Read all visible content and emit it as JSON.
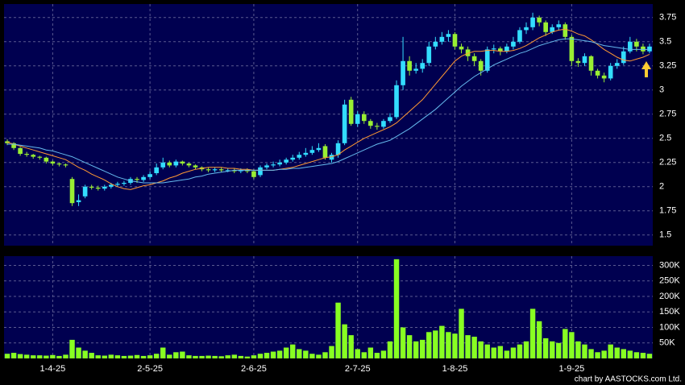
{
  "credit": "chart by AASTOCKS.com Ltd.",
  "chart_data": [
    {
      "type": "candlestick",
      "open": [
        2.47,
        2.45,
        2.4,
        2.34,
        2.33,
        2.31,
        2.3,
        2.26,
        2.24,
        2.23,
        2.08,
        1.84,
        1.9,
        2.0,
        1.99,
        1.98,
        2.0,
        2.02,
        2.03,
        2.04,
        2.08,
        2.07,
        2.1,
        2.14,
        2.2,
        2.25,
        2.22,
        2.26,
        2.24,
        2.22,
        2.2,
        2.18,
        2.17,
        2.18,
        2.17,
        2.17,
        2.16,
        2.17,
        2.16,
        2.12,
        2.2,
        2.22,
        2.23,
        2.25,
        2.28,
        2.3,
        2.33,
        2.35,
        2.38,
        2.42,
        2.28,
        2.33,
        2.45,
        2.9,
        2.65,
        2.75,
        2.68,
        2.63,
        2.62,
        2.68,
        2.72,
        3.05,
        3.3,
        3.2,
        3.22,
        3.28,
        3.45,
        3.5,
        3.55,
        3.58,
        3.45,
        3.42,
        3.35,
        3.3,
        3.2,
        3.42,
        3.43,
        3.4,
        3.45,
        3.5,
        3.62,
        3.65,
        3.75,
        3.7,
        3.6,
        3.65,
        3.68,
        3.55,
        3.3,
        3.28,
        3.35,
        3.2,
        3.15,
        3.12,
        3.25,
        3.28,
        3.4,
        3.5,
        3.45,
        3.4
      ],
      "high": [
        2.49,
        2.46,
        2.41,
        2.36,
        2.34,
        2.32,
        2.31,
        2.27,
        2.25,
        2.24,
        2.1,
        1.92,
        2.02,
        2.02,
        2.01,
        2.02,
        2.04,
        2.05,
        2.06,
        2.1,
        2.1,
        2.12,
        2.16,
        2.24,
        2.3,
        2.27,
        2.28,
        2.27,
        2.25,
        2.23,
        2.21,
        2.2,
        2.2,
        2.2,
        2.19,
        2.19,
        2.19,
        2.19,
        2.18,
        2.22,
        2.24,
        2.26,
        2.28,
        2.3,
        2.33,
        2.36,
        2.4,
        2.42,
        2.45,
        2.44,
        2.35,
        2.48,
        2.9,
        2.93,
        2.78,
        2.78,
        2.7,
        2.66,
        2.7,
        2.76,
        3.1,
        3.55,
        3.35,
        3.28,
        3.32,
        3.5,
        3.55,
        3.6,
        3.62,
        3.6,
        3.48,
        3.45,
        3.38,
        3.32,
        3.45,
        3.47,
        3.45,
        3.48,
        3.55,
        3.65,
        3.7,
        3.8,
        3.77,
        3.72,
        3.68,
        3.72,
        3.7,
        3.57,
        3.33,
        3.38,
        3.36,
        3.22,
        3.18,
        3.28,
        3.32,
        3.45,
        3.55,
        3.53,
        3.48,
        3.48
      ],
      "low": [
        2.43,
        2.38,
        2.32,
        2.31,
        2.29,
        2.28,
        2.24,
        2.22,
        2.21,
        2.2,
        1.8,
        1.8,
        1.88,
        1.97,
        1.96,
        1.96,
        1.98,
        2.0,
        2.01,
        2.02,
        2.04,
        2.05,
        2.08,
        2.12,
        2.18,
        2.2,
        2.2,
        2.22,
        2.2,
        2.18,
        2.16,
        2.15,
        2.15,
        2.15,
        2.15,
        2.14,
        2.14,
        2.14,
        2.08,
        2.1,
        2.18,
        2.2,
        2.21,
        2.23,
        2.26,
        2.28,
        2.31,
        2.33,
        2.36,
        2.28,
        2.25,
        2.3,
        2.43,
        2.63,
        2.62,
        2.65,
        2.6,
        2.59,
        2.6,
        2.66,
        2.7,
        3.0,
        3.15,
        3.17,
        3.18,
        3.25,
        3.42,
        3.47,
        3.5,
        3.42,
        3.38,
        3.3,
        3.25,
        3.15,
        3.18,
        3.38,
        3.36,
        3.38,
        3.42,
        3.48,
        3.58,
        3.62,
        3.66,
        3.56,
        3.58,
        3.62,
        3.52,
        3.25,
        3.24,
        3.25,
        3.15,
        3.12,
        3.08,
        3.1,
        3.22,
        3.26,
        3.38,
        3.4,
        3.37,
        3.38
      ],
      "close": [
        2.45,
        2.4,
        2.34,
        2.33,
        2.31,
        2.3,
        2.26,
        2.24,
        2.23,
        2.22,
        1.83,
        1.86,
        2.0,
        1.99,
        1.98,
        2.0,
        2.02,
        2.03,
        2.04,
        2.08,
        2.07,
        2.1,
        2.13,
        2.2,
        2.25,
        2.22,
        2.26,
        2.24,
        2.22,
        2.2,
        2.18,
        2.17,
        2.18,
        2.17,
        2.17,
        2.16,
        2.17,
        2.16,
        2.1,
        2.2,
        2.22,
        2.23,
        2.25,
        2.28,
        2.3,
        2.33,
        2.35,
        2.38,
        2.4,
        2.3,
        2.33,
        2.45,
        2.85,
        2.65,
        2.75,
        2.68,
        2.63,
        2.62,
        2.68,
        2.72,
        3.05,
        3.3,
        3.2,
        3.22,
        3.28,
        3.45,
        3.5,
        3.55,
        3.58,
        3.45,
        3.42,
        3.35,
        3.3,
        3.2,
        3.42,
        3.43,
        3.4,
        3.45,
        3.5,
        3.62,
        3.65,
        3.75,
        3.7,
        3.6,
        3.65,
        3.68,
        3.55,
        3.3,
        3.28,
        3.35,
        3.2,
        3.15,
        3.12,
        3.25,
        3.28,
        3.4,
        3.5,
        3.45,
        3.4,
        3.45
      ],
      "up_color": "#33ddff",
      "down_color": "#99ee33",
      "series": [
        {
          "color": "#ff9933",
          "values": [
            2.46,
            2.44,
            2.42,
            2.4,
            2.38,
            2.36,
            2.34,
            2.32,
            2.3,
            2.28,
            2.24,
            2.2,
            2.17,
            2.13,
            2.1,
            2.07,
            2.03,
            2.0,
            1.98,
            1.97,
            1.99,
            2.01,
            2.02,
            2.04,
            2.06,
            2.09,
            2.11,
            2.14,
            2.16,
            2.18,
            2.19,
            2.2,
            2.2,
            2.2,
            2.19,
            2.19,
            2.18,
            2.18,
            2.17,
            2.17,
            2.17,
            2.17,
            2.18,
            2.19,
            2.2,
            2.22,
            2.24,
            2.26,
            2.28,
            2.3,
            2.31,
            2.33,
            2.38,
            2.42,
            2.46,
            2.5,
            2.53,
            2.56,
            2.59,
            2.62,
            2.66,
            2.72,
            2.78,
            2.84,
            2.9,
            2.98,
            3.06,
            3.14,
            3.22,
            3.3,
            3.35,
            3.38,
            3.4,
            3.4,
            3.41,
            3.41,
            3.4,
            3.4,
            3.41,
            3.43,
            3.46,
            3.5,
            3.54,
            3.57,
            3.6,
            3.62,
            3.63,
            3.61,
            3.58,
            3.56,
            3.52,
            3.47,
            3.42,
            3.38,
            3.34,
            3.31,
            3.3,
            3.32,
            3.34,
            3.37
          ]
        },
        {
          "color": "#66bbee",
          "values": [
            2.44,
            2.44,
            2.43,
            2.42,
            2.41,
            2.4,
            2.38,
            2.37,
            2.35,
            2.33,
            2.31,
            2.28,
            2.25,
            2.22,
            2.19,
            2.16,
            2.13,
            2.1,
            2.08,
            2.06,
            2.05,
            2.04,
            2.04,
            2.04,
            2.04,
            2.05,
            2.06,
            2.07,
            2.08,
            2.1,
            2.11,
            2.13,
            2.14,
            2.15,
            2.16,
            2.17,
            2.17,
            2.17,
            2.17,
            2.17,
            2.17,
            2.17,
            2.18,
            2.18,
            2.19,
            2.19,
            2.2,
            2.21,
            2.22,
            2.23,
            2.24,
            2.26,
            2.29,
            2.32,
            2.35,
            2.38,
            2.41,
            2.44,
            2.46,
            2.48,
            2.52,
            2.56,
            2.6,
            2.65,
            2.7,
            2.75,
            2.8,
            2.86,
            2.92,
            2.98,
            3.04,
            3.09,
            3.14,
            3.18,
            3.22,
            3.26,
            3.29,
            3.32,
            3.35,
            3.38,
            3.4,
            3.43,
            3.46,
            3.48,
            3.5,
            3.52,
            3.53,
            3.53,
            3.52,
            3.51,
            3.5,
            3.48,
            3.46,
            3.45,
            3.44,
            3.43,
            3.42,
            3.42,
            3.42,
            3.42
          ]
        }
      ],
      "ylim": [
        1.39,
        3.89
      ],
      "yticks": [
        1.5,
        1.75,
        2,
        2.25,
        2.5,
        2.75,
        3,
        3.25,
        3.5,
        3.75
      ],
      "grid": true
    },
    {
      "type": "bar",
      "categories": [
        null,
        null,
        null,
        null,
        null,
        null,
        null,
        "1-4-25",
        null,
        null,
        null,
        null,
        null,
        null,
        null,
        null,
        null,
        null,
        null,
        null,
        null,
        null,
        "2-5-25",
        null,
        null,
        null,
        null,
        null,
        null,
        null,
        null,
        null,
        null,
        null,
        null,
        null,
        null,
        null,
        "2-6-25",
        null,
        null,
        null,
        null,
        null,
        null,
        null,
        null,
        null,
        null,
        null,
        null,
        null,
        null,
        null,
        "2-7-25",
        null,
        null,
        null,
        null,
        null,
        null,
        null,
        null,
        null,
        null,
        null,
        null,
        null,
        null,
        "1-8-25",
        null,
        null,
        null,
        null,
        null,
        null,
        null,
        null,
        null,
        null,
        null,
        null,
        null,
        null,
        null,
        null,
        null,
        "1-9-25",
        null,
        null,
        null,
        null,
        null,
        null,
        null,
        null,
        null,
        null,
        null,
        null
      ],
      "values": [
        15000,
        18000,
        14000,
        12000,
        10000,
        10000,
        9000,
        11000,
        8000,
        12000,
        60000,
        35000,
        25000,
        18000,
        10000,
        9000,
        12000,
        10000,
        8000,
        9000,
        11000,
        8000,
        10000,
        15000,
        35000,
        12000,
        20000,
        22000,
        10000,
        8000,
        8000,
        9000,
        8000,
        7000,
        10000,
        12000,
        8000,
        6000,
        10000,
        15000,
        18000,
        22000,
        25000,
        35000,
        45000,
        30000,
        25000,
        15000,
        12000,
        20000,
        40000,
        180000,
        110000,
        75000,
        30000,
        20000,
        35000,
        18000,
        25000,
        55000,
        320000,
        100000,
        75000,
        55000,
        60000,
        85000,
        90000,
        105000,
        85000,
        80000,
        160000,
        75000,
        70000,
        55000,
        45000,
        35000,
        40000,
        25000,
        35000,
        45000,
        55000,
        160000,
        120000,
        65000,
        55000,
        50000,
        95000,
        85000,
        55000,
        45000,
        30000,
        20000,
        25000,
        45000,
        35000,
        30000,
        25000,
        20000,
        18000,
        15000
      ],
      "color": "#88ff22",
      "ylim": [
        0,
        330000
      ],
      "yticks": [
        {
          "value": 50000,
          "label": "50K"
        },
        {
          "value": 100000,
          "label": "100K"
        },
        {
          "value": 150000,
          "label": "150K"
        },
        {
          "value": 200000,
          "label": "200K"
        },
        {
          "value": 250000,
          "label": "250K"
        },
        {
          "value": 300000,
          "label": "300K"
        }
      ],
      "grid": true
    }
  ]
}
